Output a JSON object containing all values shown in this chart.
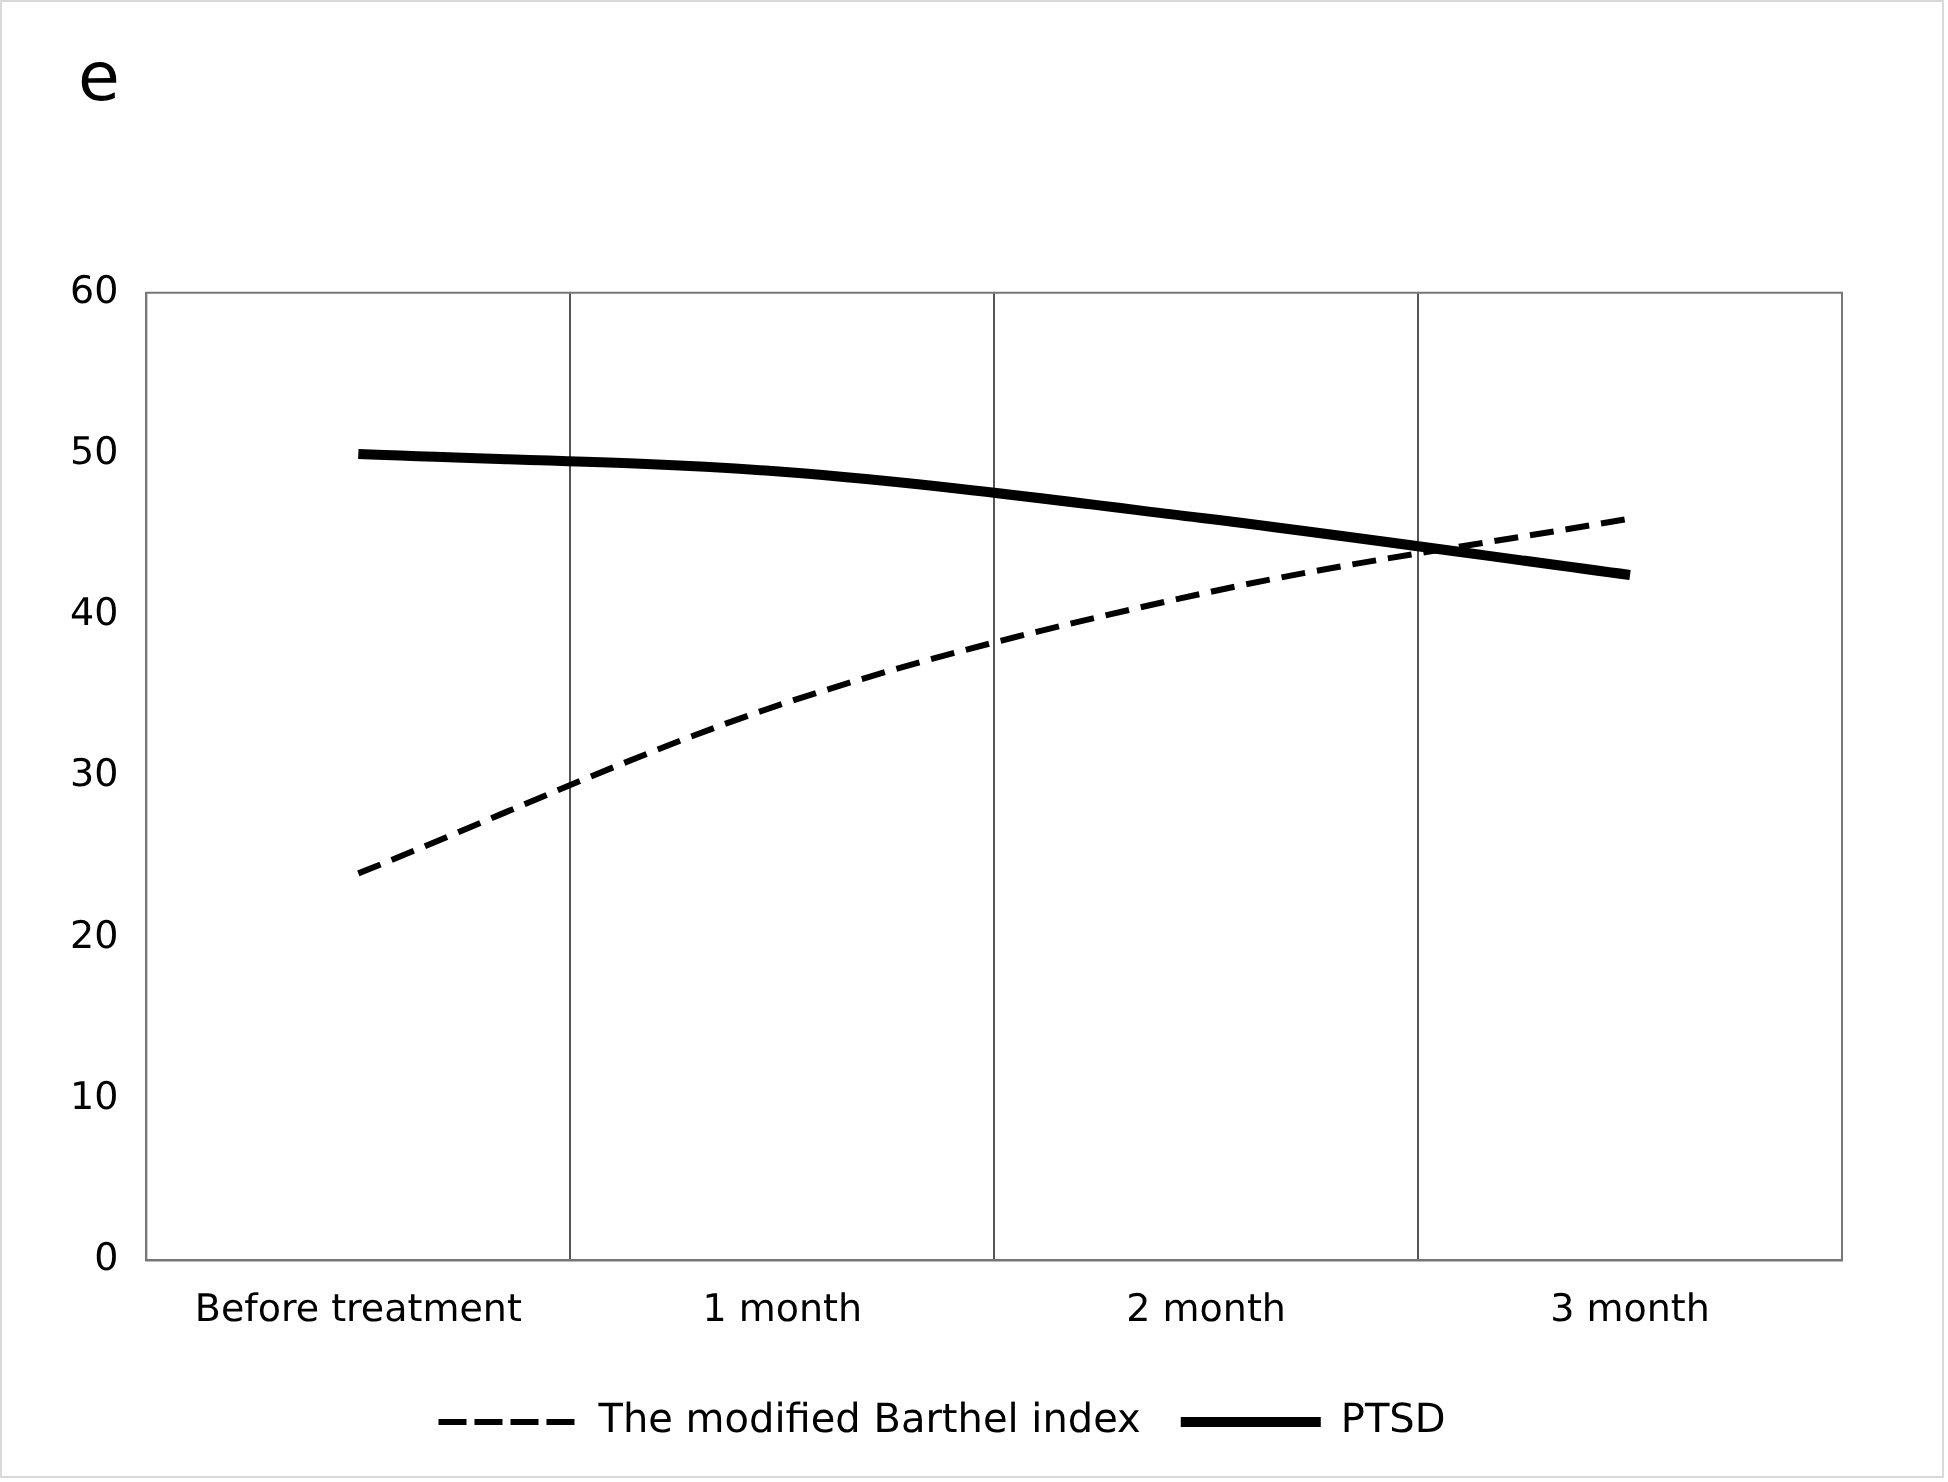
{
  "chart_data": {
    "type": "line",
    "title": "e",
    "categories": [
      "Before treatment",
      "1 month",
      "2 month",
      "3 month"
    ],
    "series": [
      {
        "name": "The modified Barthel index",
        "color": "#000000",
        "line_style": "dashed",
        "values": [
          24,
          34.5,
          41.4,
          46
        ]
      },
      {
        "name": "PTSD",
        "color": "#000000",
        "line_style": "solid",
        "values": [
          50,
          48.9,
          46,
          42.5
        ]
      }
    ],
    "ylim": [
      0,
      60
    ],
    "yticks": [
      0,
      10,
      20,
      30,
      40,
      50,
      60
    ],
    "grid": "x",
    "legend": "bottom",
    "marker": "none"
  }
}
